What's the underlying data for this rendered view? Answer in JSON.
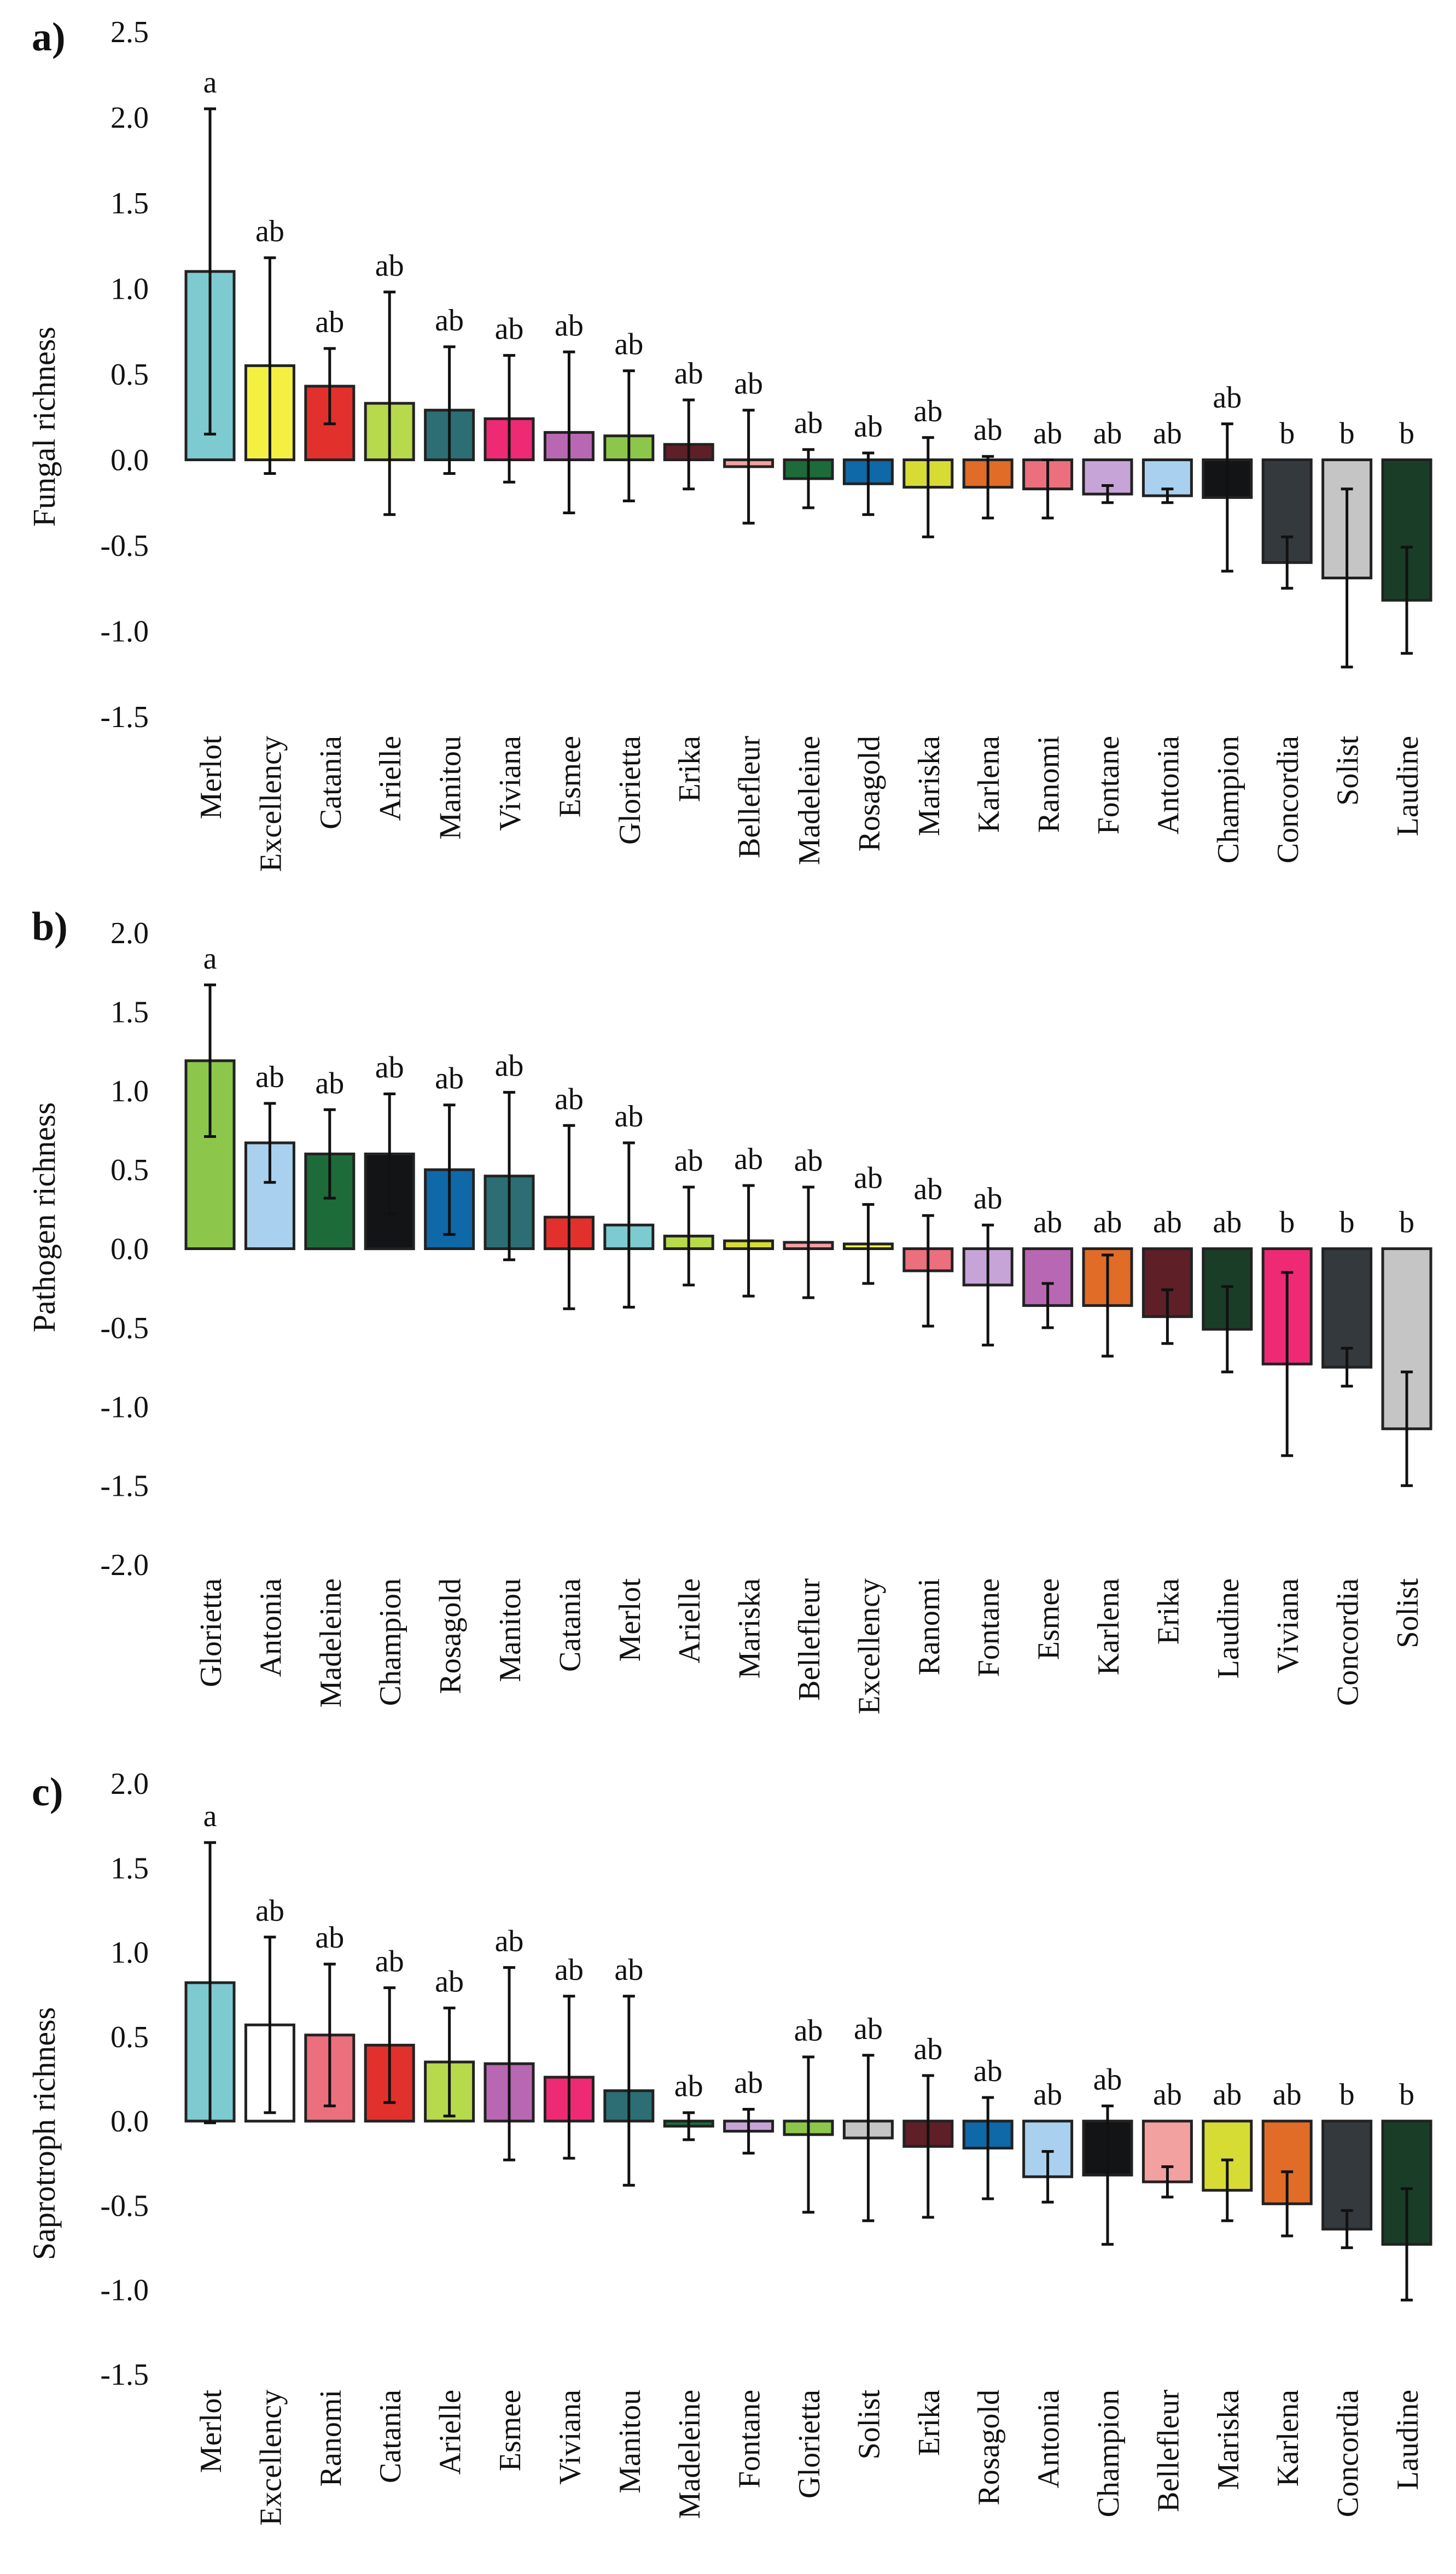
{
  "colors": {
    "Merlot": "#7DCAD0",
    "Excellency": "#F4F042",
    "Catania": "#E2312D",
    "Arielle": "#B6DA4B",
    "Manitou": "#2C6E73",
    "Viviana": "#EE2A75",
    "Esmee": "#B867B2",
    "Glorietta": "#8CC74B",
    "Erika": "#5E1F26",
    "Bellefleur": "#F3A0A1",
    "Madeleine": "#1E6B3A",
    "Rosagold": "#0F68A8",
    "Mariska": "#D7DC35",
    "Karlena": "#E06C27",
    "Ranomi": "#EC6F7E",
    "Fontane": "#C6A4D8",
    "Antonia": "#A9D0EE",
    "Champion": "#121416",
    "Concordia": "#34393E",
    "Solist": "#C5C5C5",
    "Laudine": "#1A3D28"
  },
  "chart_data": [
    {
      "type": "bar",
      "panel": "a)",
      "ylabel": "Fungal richness",
      "ylim": [
        -1.5,
        2.5
      ],
      "yticks": [
        -1.5,
        -1.0,
        -0.5,
        0.0,
        0.5,
        1.0,
        1.5,
        2.0,
        2.5
      ],
      "ytick_labels": [
        "-1.5",
        "-1.0",
        "-0.5",
        "0.0",
        "0.5",
        "1.0",
        "1.5",
        "2.0",
        "2.5"
      ],
      "categories": [
        "Merlot",
        "Excellency",
        "Catania",
        "Arielle",
        "Manitou",
        "Viviana",
        "Esmee",
        "Glorietta",
        "Erika",
        "Bellefleur",
        "Madeleine",
        "Rosagold",
        "Mariska",
        "Karlena",
        "Ranomi",
        "Fontane",
        "Antonia",
        "Champion",
        "Concordia",
        "Solist",
        "Laudine"
      ],
      "values": [
        1.1,
        0.55,
        0.43,
        0.33,
        0.29,
        0.24,
        0.16,
        0.14,
        0.09,
        -0.04,
        -0.11,
        -0.14,
        -0.16,
        -0.16,
        -0.17,
        -0.2,
        -0.21,
        -0.22,
        -0.6,
        -0.69,
        -0.82
      ],
      "error": [
        0.95,
        0.63,
        0.22,
        0.65,
        0.37,
        0.37,
        0.47,
        0.38,
        0.26,
        0.33,
        0.17,
        0.18,
        0.29,
        0.18,
        0.17,
        0.05,
        0.04,
        0.43,
        0.15,
        0.52,
        0.31
      ],
      "letters": [
        "a",
        "ab",
        "ab",
        "ab",
        "ab",
        "ab",
        "ab",
        "ab",
        "ab",
        "ab",
        "ab",
        "ab",
        "ab",
        "ab",
        "ab",
        "ab",
        "ab",
        "ab",
        "b",
        "b",
        "b"
      ]
    },
    {
      "type": "bar",
      "panel": "b)",
      "ylabel": "Pathogen richness",
      "ylim": [
        -2.0,
        2.0
      ],
      "yticks": [
        -2.0,
        -1.5,
        -1.0,
        -0.5,
        0.0,
        0.5,
        1.0,
        1.5,
        2.0
      ],
      "ytick_labels": [
        "-2.0",
        "-1.5",
        "-1.0",
        "-0.5",
        "0.0",
        "0.5",
        "1.0",
        "1.5",
        "2.0"
      ],
      "categories": [
        "Glorietta",
        "Antonia",
        "Madeleine",
        "Champion",
        "Rosagold",
        "Manitou",
        "Catania",
        "Merlot",
        "Arielle",
        "Mariska",
        "Bellefleur",
        "Excellency",
        "Ranomi",
        "Fontane",
        "Esmee",
        "Karlena",
        "Erika",
        "Laudine",
        "Viviana",
        "Concordia",
        "Solist"
      ],
      "values": [
        1.19,
        0.67,
        0.6,
        0.6,
        0.5,
        0.46,
        0.2,
        0.15,
        0.08,
        0.05,
        0.04,
        0.03,
        -0.14,
        -0.23,
        -0.36,
        -0.36,
        -0.43,
        -0.51,
        -0.73,
        -0.75,
        -1.14
      ],
      "error": [
        0.48,
        0.25,
        0.28,
        0.38,
        0.41,
        0.53,
        0.58,
        0.52,
        0.31,
        0.35,
        0.35,
        0.25,
        0.35,
        0.38,
        0.14,
        0.32,
        0.17,
        0.27,
        0.58,
        0.12,
        0.36
      ],
      "letters": [
        "a",
        "ab",
        "ab",
        "ab",
        "ab",
        "ab",
        "ab",
        "ab",
        "ab",
        "ab",
        "ab",
        "ab",
        "ab",
        "ab",
        "ab",
        "ab",
        "ab",
        "ab",
        "b",
        "b",
        "b"
      ]
    },
    {
      "type": "bar",
      "panel": "c)",
      "ylabel": "Saprotroph richness",
      "ylim": [
        -1.5,
        2.0
      ],
      "yticks": [
        -1.5,
        -1.0,
        -0.5,
        0.0,
        0.5,
        1.0,
        1.5,
        2.0
      ],
      "ytick_labels": [
        "-1.5",
        "-1.0",
        "-0.5",
        "0.0",
        "0.5",
        "1.0",
        "1.5",
        "2.0"
      ],
      "categories": [
        "Merlot",
        "Excellency",
        "Ranomi",
        "Catania",
        "Arielle",
        "Esmee",
        "Viviana",
        "Manitou",
        "Madeleine",
        "Fontane",
        "Glorietta",
        "Solist",
        "Erika",
        "Rosagold",
        "Antonia",
        "Champion",
        "Bellefleur",
        "Mariska",
        "Karlena",
        "Concordia",
        "Laudine"
      ],
      "values": [
        0.82,
        0.57,
        0.51,
        0.45,
        0.35,
        0.34,
        0.26,
        0.18,
        -0.03,
        -0.06,
        -0.08,
        -0.1,
        -0.15,
        -0.16,
        -0.33,
        -0.32,
        -0.36,
        -0.41,
        -0.49,
        -0.64,
        -0.73
      ],
      "error": [
        0.83,
        0.52,
        0.42,
        0.34,
        0.32,
        0.57,
        0.48,
        0.56,
        0.08,
        0.13,
        0.46,
        0.49,
        0.42,
        0.3,
        0.15,
        0.41,
        0.09,
        0.18,
        0.19,
        0.11,
        0.33
      ],
      "fill_override": {
        "Excellency": "#FFFFFF"
      },
      "letters": [
        "a",
        "ab",
        "ab",
        "ab",
        "ab",
        "ab",
        "ab",
        "ab",
        "ab",
        "ab",
        "ab",
        "ab",
        "ab",
        "ab",
        "ab",
        "ab",
        "ab",
        "ab",
        "ab",
        "b",
        "b"
      ]
    }
  ]
}
